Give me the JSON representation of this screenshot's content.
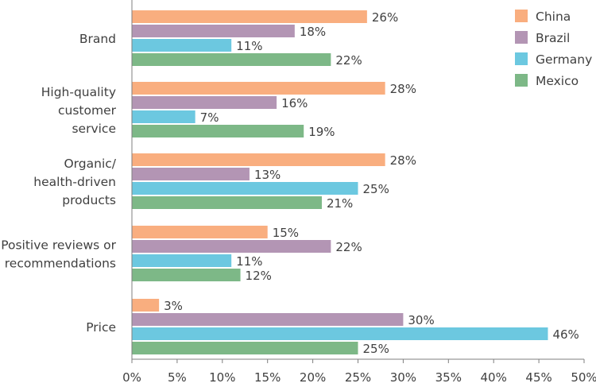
{
  "chart_data": {
    "type": "bar",
    "orientation": "horizontal",
    "categories": [
      [
        "Brand"
      ],
      [
        "High-quality",
        "customer",
        "service"
      ],
      [
        "Organic/",
        "health-driven",
        "products"
      ],
      [
        "Positive reviews or",
        "recommendations"
      ],
      [
        "Price"
      ]
    ],
    "series": [
      {
        "name": "China",
        "color": "#F9AE7F",
        "values": [
          26,
          28,
          28,
          15,
          3
        ],
        "labels": [
          "26%",
          "28%",
          "28%",
          "15%",
          "3%"
        ]
      },
      {
        "name": "Brazil",
        "color": "#B395B4",
        "values": [
          18,
          16,
          13,
          22,
          30
        ],
        "labels": [
          "18%",
          "16%",
          "13%",
          "22%",
          "30%"
        ]
      },
      {
        "name": "Germany",
        "color": "#6CC8E0",
        "values": [
          11,
          7,
          25,
          11,
          46
        ],
        "labels": [
          "11%",
          "7%",
          "25%",
          "11%",
          "46%"
        ]
      },
      {
        "name": "Mexico",
        "color": "#7DB887",
        "values": [
          22,
          19,
          21,
          12,
          25
        ],
        "labels": [
          "22%",
          "19%",
          "21%",
          "12%",
          "25%"
        ]
      }
    ],
    "xlim": [
      0,
      50
    ],
    "xticks": [
      "0%",
      "5%",
      "10%",
      "15%",
      "20%",
      "25%",
      "30%",
      "35%",
      "40%",
      "45%",
      "50%"
    ],
    "grid": false,
    "legend_position": "top-right"
  }
}
